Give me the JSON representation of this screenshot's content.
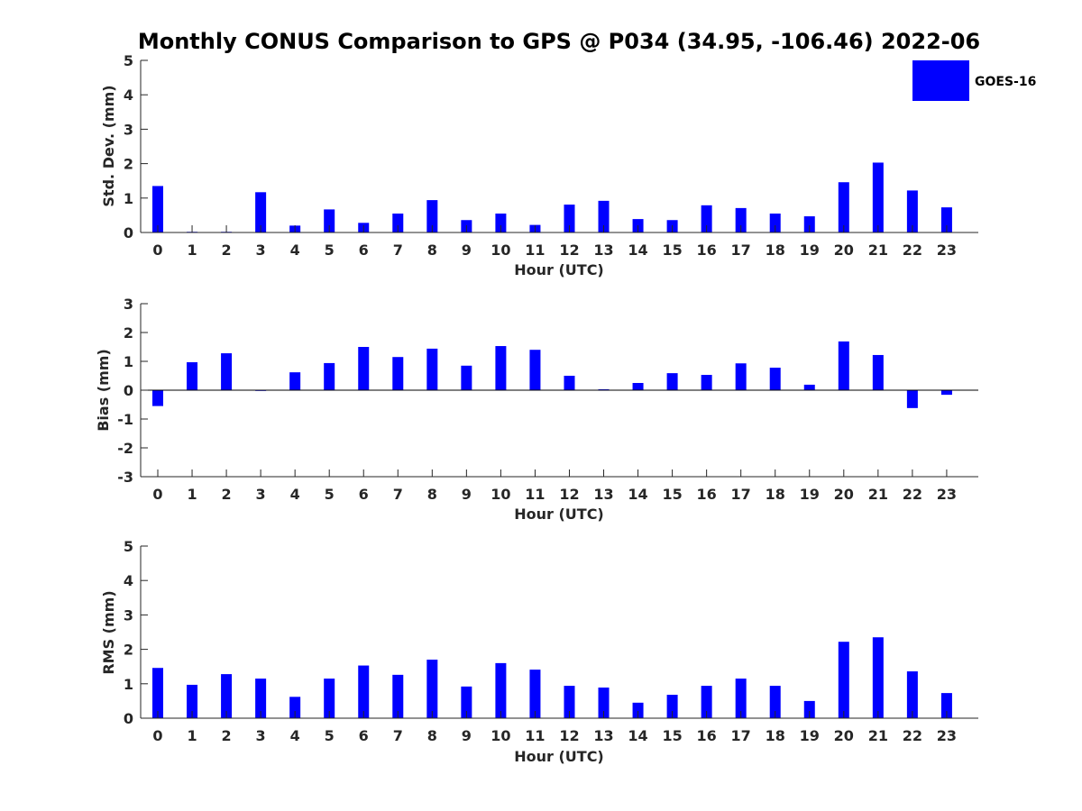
{
  "title": "Monthly CONUS Comparison to GPS @ P034 (34.95, -106.46) 2022-06",
  "legend": {
    "label": "GOES-16",
    "color": "#0000ff"
  },
  "chart_data": [
    {
      "type": "bar",
      "id": "stddev",
      "xlabel": "Hour (UTC)",
      "ylabel": "Std. Dev. (mm)",
      "ylim": [
        0,
        5
      ],
      "yticks": [
        0,
        1,
        2,
        3,
        4,
        5
      ],
      "categories": [
        "0",
        "1",
        "2",
        "3",
        "4",
        "5",
        "6",
        "7",
        "8",
        "9",
        "10",
        "11",
        "12",
        "13",
        "14",
        "15",
        "16",
        "17",
        "18",
        "19",
        "20",
        "21",
        "22",
        "23"
      ],
      "series": [
        {
          "name": "GOES-16",
          "values": [
            1.35,
            0.02,
            0.02,
            1.17,
            0.2,
            0.67,
            0.28,
            0.55,
            0.94,
            0.36,
            0.55,
            0.22,
            0.81,
            0.92,
            0.39,
            0.36,
            0.79,
            0.71,
            0.55,
            0.47,
            1.46,
            2.03,
            1.22,
            0.73
          ]
        }
      ]
    },
    {
      "type": "bar",
      "id": "bias",
      "xlabel": "Hour (UTC)",
      "ylabel": "Bias (mm)",
      "ylim": [
        -3,
        3
      ],
      "yticks": [
        -3,
        -2,
        -1,
        0,
        1,
        2,
        3
      ],
      "categories": [
        "0",
        "1",
        "2",
        "3",
        "4",
        "5",
        "6",
        "7",
        "8",
        "9",
        "10",
        "11",
        "12",
        "13",
        "14",
        "15",
        "16",
        "17",
        "18",
        "19",
        "20",
        "21",
        "22",
        "23"
      ],
      "series": [
        {
          "name": "GOES-16",
          "values": [
            -0.55,
            0.97,
            1.28,
            0.0,
            0.62,
            0.94,
            1.5,
            1.15,
            1.44,
            0.85,
            1.53,
            1.4,
            0.5,
            0.03,
            0.25,
            0.59,
            0.53,
            0.93,
            0.78,
            0.19,
            1.69,
            1.22,
            -0.62,
            -0.16
          ]
        }
      ]
    },
    {
      "type": "bar",
      "id": "rms",
      "xlabel": "Hour (UTC)",
      "ylabel": "RMS (mm)",
      "ylim": [
        0,
        5
      ],
      "yticks": [
        0,
        1,
        2,
        3,
        4,
        5
      ],
      "categories": [
        "0",
        "1",
        "2",
        "3",
        "4",
        "5",
        "6",
        "7",
        "8",
        "9",
        "10",
        "11",
        "12",
        "13",
        "14",
        "15",
        "16",
        "17",
        "18",
        "19",
        "20",
        "21",
        "22",
        "23"
      ],
      "series": [
        {
          "name": "GOES-16",
          "values": [
            1.46,
            0.97,
            1.28,
            1.15,
            0.62,
            1.15,
            1.53,
            1.26,
            1.7,
            0.92,
            1.6,
            1.41,
            0.94,
            0.89,
            0.45,
            0.68,
            0.94,
            1.15,
            0.94,
            0.5,
            2.22,
            2.35,
            1.36,
            0.73
          ]
        }
      ]
    }
  ]
}
